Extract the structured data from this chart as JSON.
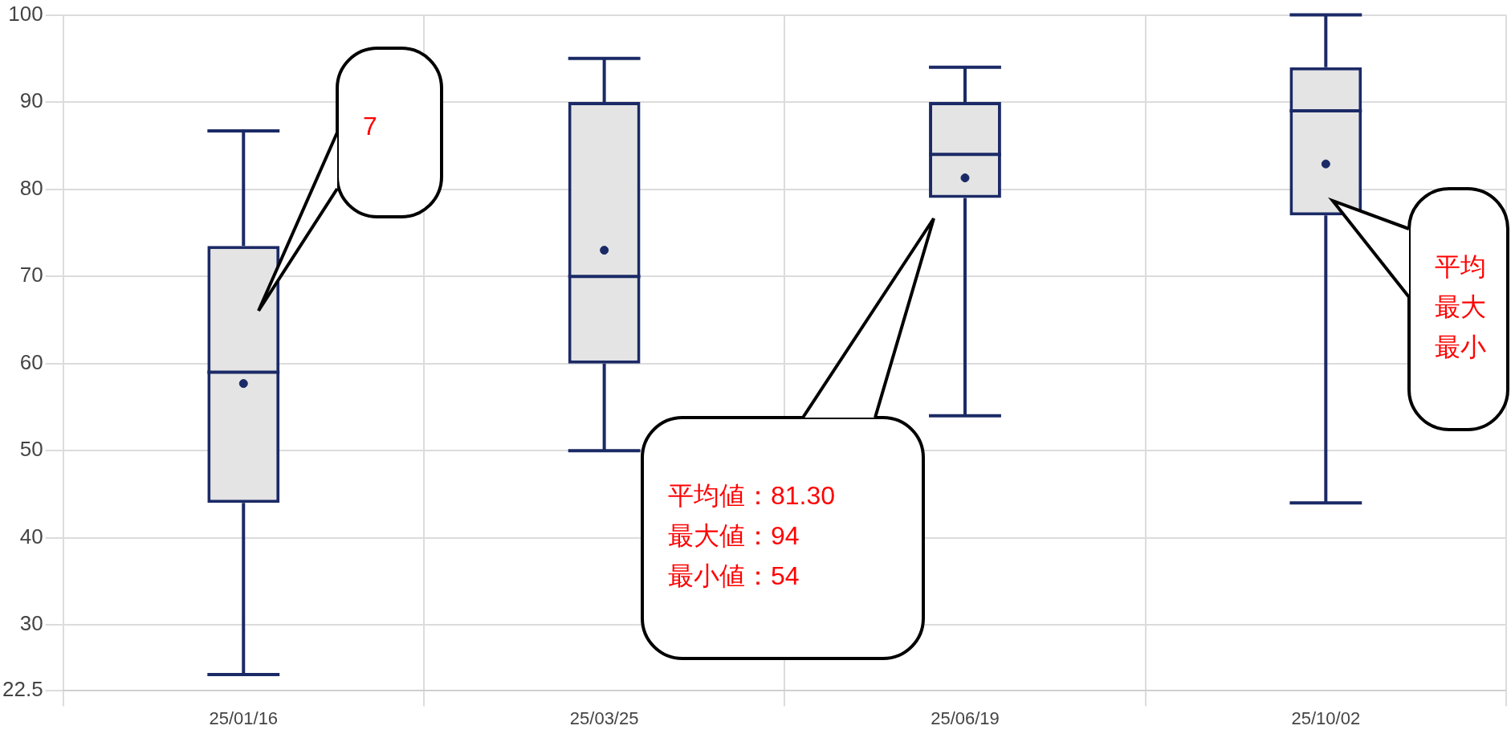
{
  "chart_data": {
    "type": "box",
    "categories": [
      "25/01/16",
      "25/03/25",
      "25/06/19",
      "25/10/02"
    ],
    "series": [
      {
        "color": "#1b2a66",
        "boxes": [
          {
            "low": 24.3,
            "q1": 44,
            "median": 59,
            "q3": 73.5,
            "high": 86.7,
            "mean": 57.7
          },
          {
            "low": 50,
            "q1": 60,
            "median": 70,
            "q3": 90,
            "high": 95,
            "mean": 73
          },
          {
            "low": 54,
            "q1": 79,
            "median": 84,
            "q3": 90,
            "high": 94,
            "mean": 81.3
          },
          {
            "low": 44,
            "q1": 77,
            "median": 89,
            "q3": 94,
            "high": 100,
            "mean": 82.9
          }
        ]
      }
    ],
    "ylim": [
      22.5,
      100
    ],
    "yticks": [
      100,
      90,
      80,
      70,
      60,
      50,
      40,
      30,
      22.5
    ],
    "grid": true,
    "annotations": [
      "7",
      "平均値：81.30\n最大値：94\n最小値：54",
      "平均最大最小"
    ]
  }
}
